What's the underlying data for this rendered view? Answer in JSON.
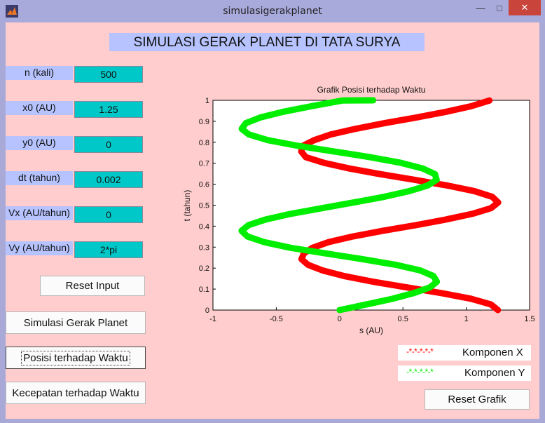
{
  "window": {
    "title": "simulasigerakplanet"
  },
  "heading": "SIMULASI GERAK PLANET DI TATA SURYA",
  "inputs": [
    {
      "label": "n (kali)",
      "value": "500"
    },
    {
      "label": "x0 (AU)",
      "value": "1.25"
    },
    {
      "label": "y0 (AU)",
      "value": "0"
    },
    {
      "label": "dt (tahun)",
      "value": "0.002"
    },
    {
      "label": "Vx (AU/tahun)",
      "value": "0"
    },
    {
      "label": "Vy (AU/tahun)",
      "value": "2*pi"
    }
  ],
  "buttons": {
    "reset_input": "Reset Input",
    "simulasi": "Simulasi Gerak Planet",
    "posisi": "Posisi terhadap Waktu",
    "kecepatan": "Kecepatan terhadap Waktu",
    "reset_grafik": "Reset Grafik"
  },
  "legend": [
    {
      "marker": "-*-*-*-*-*",
      "label": "Komponen X",
      "color": "#ff0000"
    },
    {
      "marker": "-*-*-*-*-*",
      "label": "Komponen Y",
      "color": "#00ee00"
    }
  ],
  "chart_data": {
    "type": "line",
    "title": "Grafik Posisi terhadap Waktu",
    "xlabel": "s (AU)",
    "ylabel": "t (tahun)",
    "xlim": [
      -1,
      1.5
    ],
    "ylim": [
      0,
      1
    ],
    "xticks": [
      "-1",
      "-0.5",
      "0",
      "0.5",
      "1",
      "1.5"
    ],
    "yticks": [
      "0",
      "0.1",
      "0.2",
      "0.3",
      "0.4",
      "0.5",
      "0.6",
      "0.7",
      "0.8",
      "0.9",
      "1"
    ],
    "series": [
      {
        "name": "Komponen X",
        "color": "#ff0000",
        "x": [
          1.25,
          1.194,
          1.036,
          0.803,
          0.532,
          0.266,
          0.037,
          -0.135,
          -0.25,
          -0.301,
          -0.282,
          -0.214,
          -0.087,
          0.106,
          0.343,
          0.603,
          0.842,
          1.049,
          1.196,
          1.252,
          1.205,
          1.064,
          0.848,
          0.591,
          0.321,
          0.077,
          -0.124,
          -0.267,
          -0.303,
          -0.291,
          -0.201,
          -0.071,
          0.125,
          0.354,
          0.604,
          0.839,
          1.039,
          1.183
        ],
        "t": [
          0.0,
          0.027,
          0.054,
          0.081,
          0.108,
          0.135,
          0.162,
          0.189,
          0.216,
          0.243,
          0.27,
          0.297,
          0.324,
          0.351,
          0.378,
          0.405,
          0.432,
          0.459,
          0.486,
          0.513,
          0.54,
          0.567,
          0.594,
          0.621,
          0.648,
          0.675,
          0.702,
          0.729,
          0.756,
          0.783,
          0.81,
          0.837,
          0.864,
          0.891,
          0.918,
          0.945,
          0.972,
          0.999
        ]
      },
      {
        "name": "Komponen Y",
        "color": "#00ee00",
        "x": [
          0.0,
          0.213,
          0.418,
          0.586,
          0.712,
          0.768,
          0.741,
          0.637,
          0.441,
          0.177,
          -0.108,
          -0.389,
          -0.596,
          -0.728,
          -0.774,
          -0.719,
          -0.582,
          -0.385,
          -0.137,
          0.112,
          0.352,
          0.549,
          0.695,
          0.766,
          0.753,
          0.656,
          0.483,
          0.241,
          -0.043,
          -0.329,
          -0.566,
          -0.716,
          -0.773,
          -0.741,
          -0.627,
          -0.448,
          -0.221,
          0.021,
          0.265
        ],
        "t": [
          0.0,
          0.027,
          0.054,
          0.081,
          0.108,
          0.135,
          0.162,
          0.189,
          0.216,
          0.243,
          0.27,
          0.297,
          0.324,
          0.351,
          0.378,
          0.405,
          0.432,
          0.459,
          0.486,
          0.513,
          0.54,
          0.567,
          0.594,
          0.621,
          0.648,
          0.675,
          0.702,
          0.729,
          0.756,
          0.783,
          0.81,
          0.837,
          0.864,
          0.891,
          0.918,
          0.945,
          0.972,
          0.999,
          1.0
        ]
      }
    ],
    "grid": false
  }
}
